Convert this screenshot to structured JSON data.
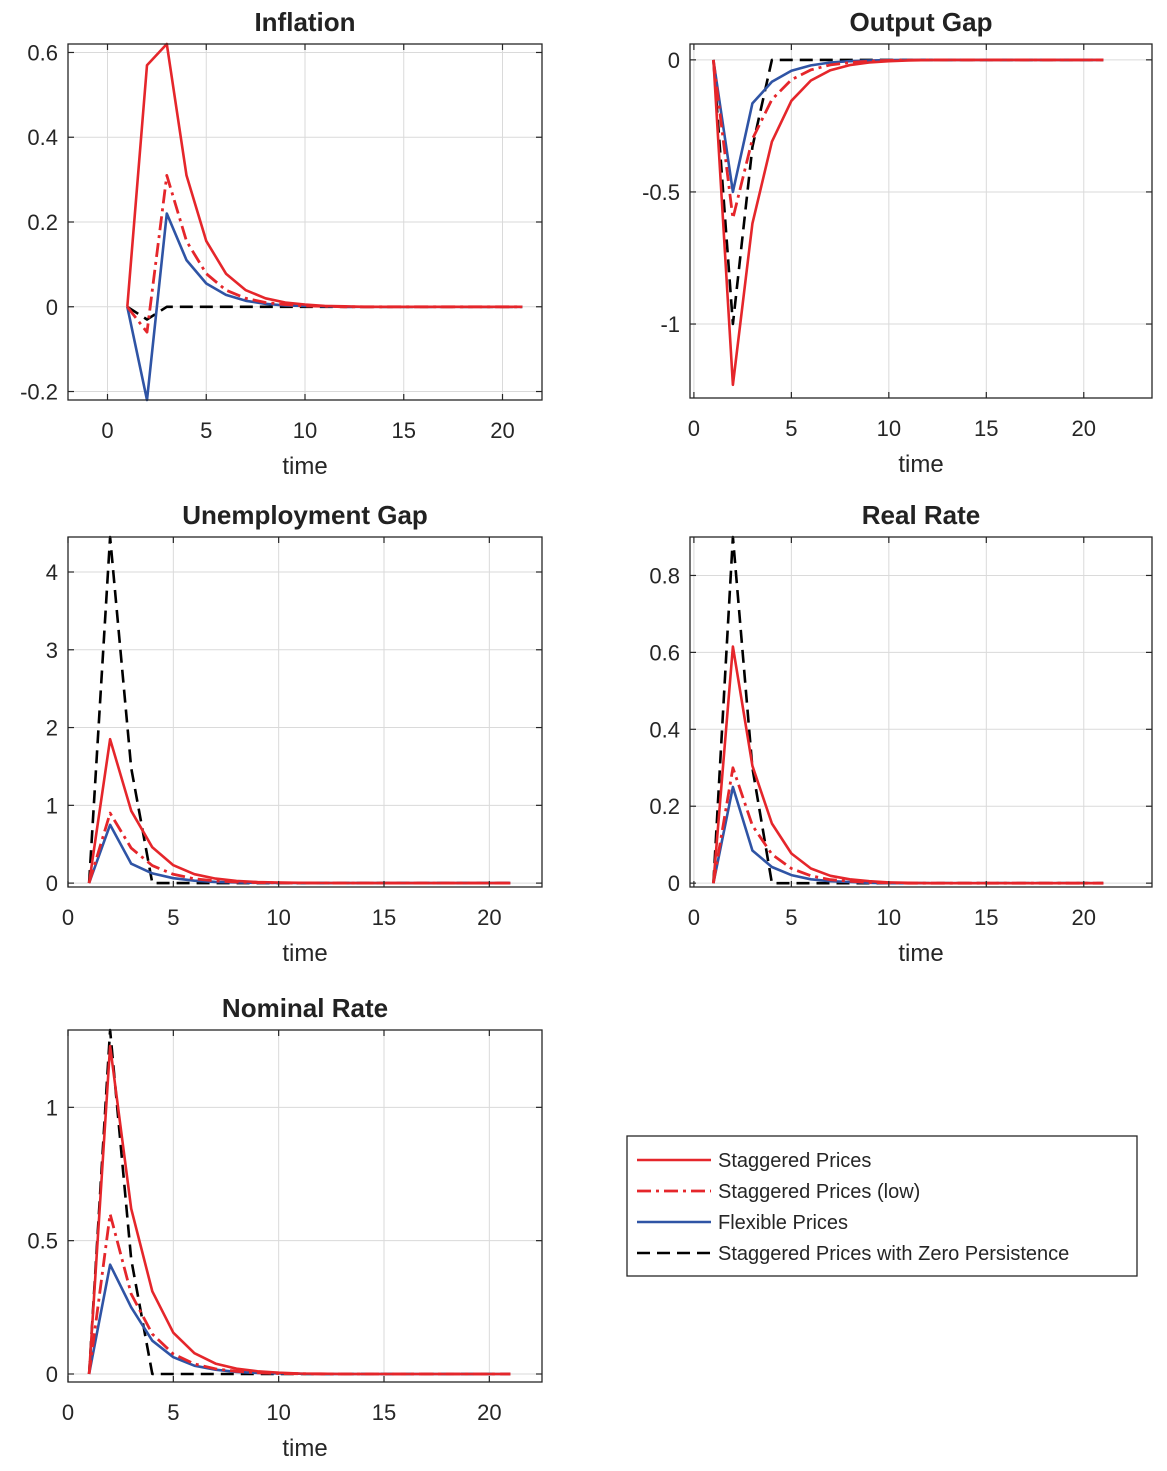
{
  "legend": {
    "entries": [
      {
        "name": "Staggered Prices",
        "color": "#e5262b",
        "style": "solid"
      },
      {
        "name": "Staggered Prices (low)",
        "color": "#e5262b",
        "style": "dashdot"
      },
      {
        "name": "Flexible Prices",
        "color": "#2f54a5",
        "style": "solid"
      },
      {
        "name": "Staggered Prices with Zero Persistence",
        "color": "#000000",
        "style": "dashed"
      }
    ]
  },
  "chart_data": [
    {
      "type": "line",
      "title": "Inflation",
      "xlabel": "time",
      "xlim": [
        -2,
        22
      ],
      "ylim": [
        -0.22,
        0.62
      ],
      "xticks": [
        0,
        5,
        10,
        15,
        20
      ],
      "yticks": [
        -0.2,
        0,
        0.2,
        0.4,
        0.6
      ],
      "ytick_labels": [
        "-0.2",
        "0",
        "0.2",
        "0.4",
        "0.6"
      ],
      "grid": true,
      "x": [
        1,
        2,
        3,
        4,
        5,
        6,
        7,
        8,
        9,
        10,
        11,
        12,
        13,
        14,
        15,
        16,
        17,
        18,
        19,
        20,
        21
      ],
      "series": [
        {
          "name": "Staggered Prices",
          "values": [
            0,
            0.57,
            0.62,
            0.31,
            0.155,
            0.078,
            0.039,
            0.02,
            0.01,
            0.005,
            0.002,
            0.001,
            0,
            0,
            0,
            0,
            0,
            0,
            0,
            0,
            0
          ]
        },
        {
          "name": "Staggered Prices (low)",
          "values": [
            0,
            -0.06,
            0.31,
            0.155,
            0.078,
            0.039,
            0.02,
            0.01,
            0.005,
            0.002,
            0.001,
            0,
            0,
            0,
            0,
            0,
            0,
            0,
            0,
            0,
            0
          ]
        },
        {
          "name": "Flexible Prices",
          "values": [
            0,
            -0.22,
            0.22,
            0.11,
            0.055,
            0.028,
            0.014,
            0.007,
            0.003,
            0.002,
            0.001,
            0,
            0,
            0,
            0,
            0,
            0,
            0,
            0,
            0,
            0
          ]
        },
        {
          "name": "Staggered Prices with Zero Persistence",
          "values": [
            0,
            -0.03,
            0,
            0,
            0,
            0,
            0,
            0,
            0,
            0,
            0,
            0,
            0,
            0,
            0,
            0,
            0,
            0,
            0,
            0,
            0
          ]
        }
      ]
    },
    {
      "type": "line",
      "title": "Output Gap",
      "xlabel": "time",
      "xlim": [
        -0.2,
        23.5
      ],
      "ylim": [
        -1.28,
        0.06
      ],
      "xticks": [
        0,
        5,
        10,
        15,
        20
      ],
      "yticks": [
        -1,
        -0.5,
        0
      ],
      "ytick_labels": [
        "-1",
        "-0.5",
        "0"
      ],
      "grid": true,
      "x": [
        1,
        2,
        3,
        4,
        5,
        6,
        7,
        8,
        9,
        10,
        11,
        12,
        13,
        14,
        15,
        16,
        17,
        18,
        19,
        20,
        21
      ],
      "series": [
        {
          "name": "Staggered Prices",
          "values": [
            0,
            -1.23,
            -0.62,
            -0.31,
            -0.155,
            -0.078,
            -0.039,
            -0.02,
            -0.01,
            -0.005,
            -0.002,
            -0.001,
            0,
            0,
            0,
            0,
            0,
            0,
            0,
            0,
            0
          ]
        },
        {
          "name": "Staggered Prices (low)",
          "values": [
            0,
            -0.6,
            -0.3,
            -0.15,
            -0.075,
            -0.038,
            -0.019,
            -0.01,
            -0.005,
            -0.002,
            -0.001,
            0,
            0,
            0,
            0,
            0,
            0,
            0,
            0,
            0,
            0
          ]
        },
        {
          "name": "Flexible Prices",
          "values": [
            0,
            -0.5,
            -0.165,
            -0.083,
            -0.041,
            -0.021,
            -0.01,
            -0.005,
            -0.003,
            -0.001,
            0,
            0,
            0,
            0,
            0,
            0,
            0,
            0,
            0,
            0,
            0
          ]
        },
        {
          "name": "Staggered Prices with Zero Persistence",
          "values": [
            0,
            -1.0,
            -0.33,
            0,
            0,
            0,
            0,
            0,
            0,
            0,
            0,
            0,
            0,
            0,
            0,
            0,
            0,
            0,
            0,
            0,
            0
          ]
        }
      ]
    },
    {
      "type": "line",
      "title": "Unemployment Gap",
      "xlabel": "time",
      "xlim": [
        0,
        22.5
      ],
      "ylim": [
        -0.05,
        4.45
      ],
      "xticks": [
        0,
        5,
        10,
        15,
        20
      ],
      "yticks": [
        0,
        1,
        2,
        3,
        4
      ],
      "ytick_labels": [
        "0",
        "1",
        "2",
        "3",
        "4"
      ],
      "grid": true,
      "x": [
        1,
        2,
        3,
        4,
        5,
        6,
        7,
        8,
        9,
        10,
        11,
        12,
        13,
        14,
        15,
        16,
        17,
        18,
        19,
        20,
        21
      ],
      "series": [
        {
          "name": "Staggered Prices",
          "values": [
            0,
            1.85,
            0.93,
            0.46,
            0.23,
            0.115,
            0.058,
            0.029,
            0.014,
            0.007,
            0.004,
            0.002,
            0.001,
            0,
            0,
            0,
            0,
            0,
            0,
            0,
            0
          ]
        },
        {
          "name": "Staggered Prices (low)",
          "values": [
            0,
            0.9,
            0.45,
            0.225,
            0.113,
            0.056,
            0.028,
            0.014,
            0.007,
            0.004,
            0.002,
            0.001,
            0,
            0,
            0,
            0,
            0,
            0,
            0,
            0,
            0
          ]
        },
        {
          "name": "Flexible Prices",
          "values": [
            0,
            0.75,
            0.25,
            0.125,
            0.063,
            0.031,
            0.016,
            0.008,
            0.004,
            0.002,
            0.001,
            0,
            0,
            0,
            0,
            0,
            0,
            0,
            0,
            0,
            0
          ]
        },
        {
          "name": "Staggered Prices with Zero Persistence",
          "values": [
            0,
            4.45,
            1.48,
            0,
            0,
            0,
            0,
            0,
            0,
            0,
            0,
            0,
            0,
            0,
            0,
            0,
            0,
            0,
            0,
            0,
            0
          ]
        }
      ]
    },
    {
      "type": "line",
      "title": "Real Rate",
      "xlabel": "time",
      "xlim": [
        -0.2,
        23.5
      ],
      "ylim": [
        -0.01,
        0.9
      ],
      "xticks": [
        0,
        5,
        10,
        15,
        20
      ],
      "yticks": [
        0,
        0.2,
        0.4,
        0.6,
        0.8
      ],
      "ytick_labels": [
        "0",
        "0.2",
        "0.4",
        "0.6",
        "0.8"
      ],
      "grid": true,
      "x": [
        1,
        2,
        3,
        4,
        5,
        6,
        7,
        8,
        9,
        10,
        11,
        12,
        13,
        14,
        15,
        16,
        17,
        18,
        19,
        20,
        21
      ],
      "series": [
        {
          "name": "Staggered Prices",
          "values": [
            0,
            0.615,
            0.305,
            0.155,
            0.077,
            0.038,
            0.019,
            0.01,
            0.005,
            0.002,
            0.001,
            0,
            0,
            0,
            0,
            0,
            0,
            0,
            0,
            0,
            0
          ]
        },
        {
          "name": "Staggered Prices (low)",
          "values": [
            0,
            0.3,
            0.15,
            0.075,
            0.038,
            0.019,
            0.009,
            0.005,
            0.002,
            0.001,
            0,
            0,
            0,
            0,
            0,
            0,
            0,
            0,
            0,
            0,
            0
          ]
        },
        {
          "name": "Flexible Prices",
          "values": [
            0,
            0.25,
            0.085,
            0.042,
            0.021,
            0.01,
            0.005,
            0.003,
            0.001,
            0,
            0,
            0,
            0,
            0,
            0,
            0,
            0,
            0,
            0,
            0,
            0
          ]
        },
        {
          "name": "Staggered Prices with Zero Persistence",
          "values": [
            0,
            0.9,
            0.3,
            0,
            0,
            0,
            0,
            0,
            0,
            0,
            0,
            0,
            0,
            0,
            0,
            0,
            0,
            0,
            0,
            0,
            0
          ]
        }
      ]
    },
    {
      "type": "line",
      "title": "Nominal Rate",
      "xlabel": "time",
      "xlim": [
        0,
        22.5
      ],
      "ylim": [
        -0.03,
        1.29
      ],
      "xticks": [
        0,
        5,
        10,
        15,
        20
      ],
      "yticks": [
        0,
        0.5,
        1
      ],
      "ytick_labels": [
        "0",
        "0.5",
        "1"
      ],
      "grid": true,
      "x": [
        1,
        2,
        3,
        4,
        5,
        6,
        7,
        8,
        9,
        10,
        11,
        12,
        13,
        14,
        15,
        16,
        17,
        18,
        19,
        20,
        21
      ],
      "series": [
        {
          "name": "Staggered Prices",
          "values": [
            0,
            1.23,
            0.62,
            0.31,
            0.155,
            0.078,
            0.039,
            0.02,
            0.01,
            0.005,
            0.002,
            0.001,
            0,
            0,
            0,
            0,
            0,
            0,
            0,
            0,
            0
          ]
        },
        {
          "name": "Staggered Prices (low)",
          "values": [
            0,
            0.6,
            0.3,
            0.15,
            0.075,
            0.038,
            0.019,
            0.01,
            0.005,
            0.002,
            0.001,
            0,
            0,
            0,
            0,
            0,
            0,
            0,
            0,
            0,
            0
          ]
        },
        {
          "name": "Flexible Prices",
          "values": [
            0,
            0.41,
            0.25,
            0.125,
            0.063,
            0.031,
            0.016,
            0.008,
            0.004,
            0.002,
            0.001,
            0,
            0,
            0,
            0,
            0,
            0,
            0,
            0,
            0,
            0
          ]
        },
        {
          "name": "Staggered Prices with Zero Persistence",
          "values": [
            0,
            1.29,
            0.43,
            0,
            0,
            0,
            0,
            0,
            0,
            0,
            0,
            0,
            0,
            0,
            0,
            0,
            0,
            0,
            0,
            0,
            0
          ]
        }
      ]
    }
  ]
}
